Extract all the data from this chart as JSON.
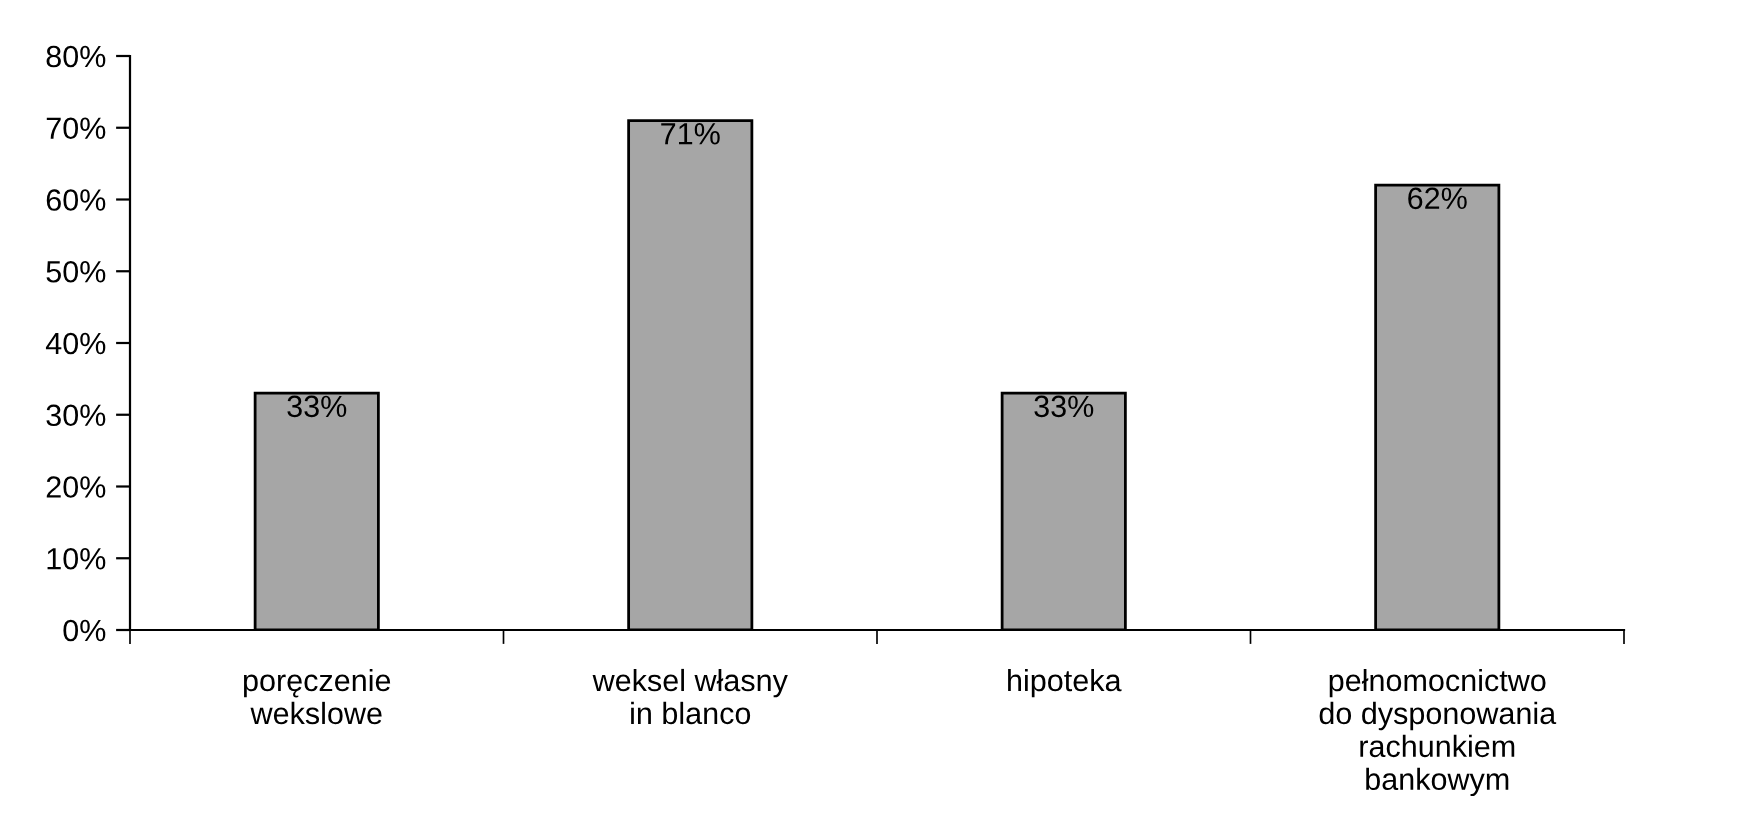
{
  "chart_data": {
    "type": "bar",
    "categories": [
      "poręczenie\nwekslowe",
      "weksel własny\nin blanco",
      "hipoteka",
      "pełnomocnictwo\ndo dysponowania\nrachunkiem\nbankowym"
    ],
    "values": [
      33,
      71,
      33,
      62
    ],
    "value_labels": [
      "33%",
      "71%",
      "33%",
      "62%"
    ],
    "color": "#a6a6a6",
    "ylim": [
      0,
      80
    ],
    "yticks": [
      {
        "value": 0,
        "label": "0%"
      },
      {
        "value": 10,
        "label": "10%"
      },
      {
        "value": 20,
        "label": "20%"
      },
      {
        "value": 30,
        "label": "30%"
      },
      {
        "value": 40,
        "label": "40%"
      },
      {
        "value": 50,
        "label": "50%"
      },
      {
        "value": 60,
        "label": "60%"
      },
      {
        "value": 70,
        "label": "70%"
      },
      {
        "value": 80,
        "label": "80%"
      }
    ],
    "grid": false,
    "legend": false
  }
}
